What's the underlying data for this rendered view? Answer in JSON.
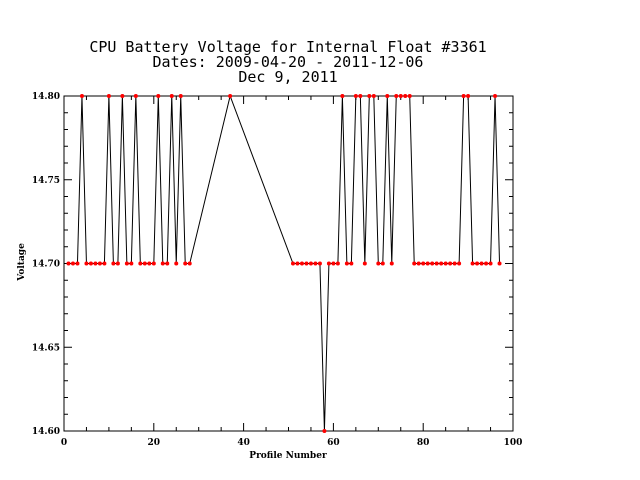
{
  "chart_data": {
    "type": "line",
    "title_lines": [
      "CPU Battery Voltage for Internal Float #3361",
      "Dates:  2009-04-20 -  2011-12-06",
      "Dec  9, 2011"
    ],
    "xlabel": "Profile Number",
    "ylabel": "Voltage",
    "xlim": [
      0,
      100
    ],
    "ylim": [
      14.6,
      14.8
    ],
    "xticks": [
      0,
      20,
      40,
      60,
      80,
      100
    ],
    "yticks": [
      14.6,
      14.65,
      14.7,
      14.75,
      14.8
    ],
    "ytick_labels": [
      "14.60",
      "14.65",
      "14.70",
      "14.75",
      "14.80"
    ],
    "grid": false,
    "marker_color": "#ff0000",
    "line_color": "#000000",
    "series": [
      {
        "x": [
          1,
          2,
          3,
          4,
          5,
          6,
          7,
          8,
          9,
          10,
          11,
          12,
          13,
          14,
          15,
          16,
          17,
          18,
          19,
          20,
          21,
          22,
          23,
          24,
          25,
          26,
          27,
          28,
          37,
          51,
          52,
          53,
          54,
          55,
          56,
          57,
          58,
          59,
          60,
          61,
          62,
          63,
          64,
          65,
          66,
          67,
          68,
          69,
          70,
          71,
          72,
          73,
          74,
          75,
          76,
          77,
          78,
          79,
          80,
          81,
          82,
          83,
          84,
          85,
          86,
          87,
          88,
          89,
          90,
          91,
          92,
          93,
          94,
          95,
          96,
          97
        ],
        "y": [
          14.7,
          14.7,
          14.7,
          14.8,
          14.7,
          14.7,
          14.7,
          14.7,
          14.7,
          14.8,
          14.7,
          14.7,
          14.8,
          14.7,
          14.7,
          14.8,
          14.7,
          14.7,
          14.7,
          14.7,
          14.8,
          14.7,
          14.7,
          14.8,
          14.7,
          14.8,
          14.7,
          14.7,
          14.8,
          14.7,
          14.7,
          14.7,
          14.7,
          14.7,
          14.7,
          14.7,
          14.6,
          14.7,
          14.7,
          14.7,
          14.8,
          14.7,
          14.7,
          14.8,
          14.8,
          14.7,
          14.8,
          14.8,
          14.7,
          14.7,
          14.8,
          14.7,
          14.8,
          14.8,
          14.8,
          14.8,
          14.7,
          14.7,
          14.7,
          14.7,
          14.7,
          14.7,
          14.7,
          14.7,
          14.7,
          14.7,
          14.7,
          14.8,
          14.8,
          14.7,
          14.7,
          14.7,
          14.7,
          14.7,
          14.8,
          14.7
        ]
      }
    ]
  }
}
